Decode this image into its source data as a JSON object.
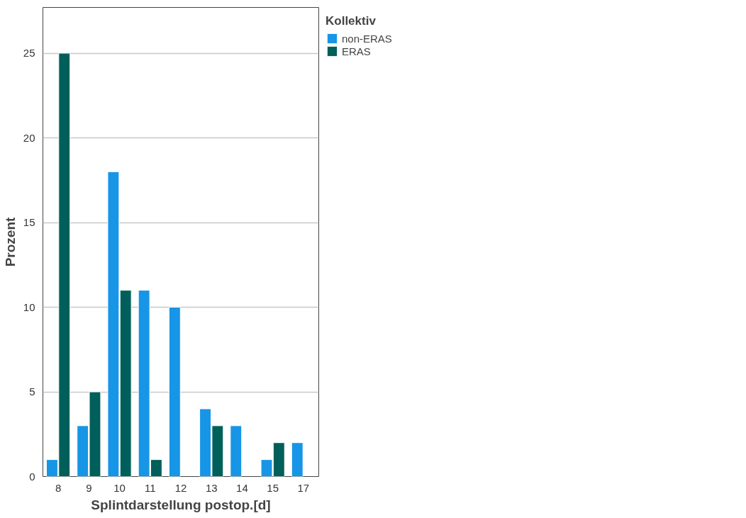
{
  "chart_data": {
    "type": "bar",
    "xlabel": "Splintdarstellung postop.[d]",
    "ylabel": "Prozent",
    "legend_title": "Kollektiv",
    "categories": [
      "8",
      "9",
      "10",
      "11",
      "12",
      "13",
      "14",
      "15",
      "17"
    ],
    "series": [
      {
        "name": "non-ERAS",
        "color": "#1795e6",
        "values": [
          1,
          3,
          18,
          11,
          10,
          4,
          3,
          1,
          2
        ]
      },
      {
        "name": "ERAS",
        "color": "#005f5a",
        "values": [
          25,
          5,
          11,
          1,
          null,
          3,
          null,
          2,
          null
        ]
      }
    ],
    "ylim": [
      0,
      27.7
    ],
    "yticks": [
      0,
      5,
      10,
      15,
      20,
      25
    ],
    "grid": "y",
    "legend": "top right"
  }
}
